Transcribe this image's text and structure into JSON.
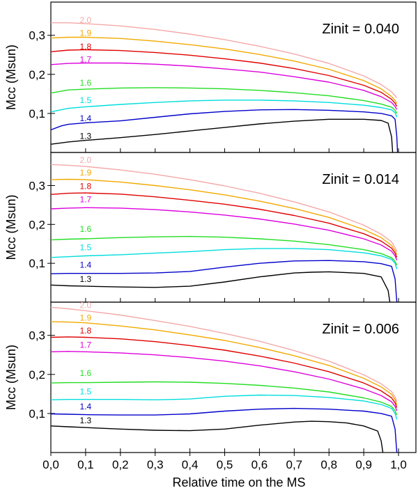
{
  "chart_data": [
    {
      "type": "line",
      "title": "Zinit = 0.040",
      "xlabel": "Relative time on the MS",
      "ylabel": "Mcc (Msun)",
      "xlim": [
        0.0,
        1.05
      ],
      "ylim": [
        0.0,
        0.385
      ],
      "xticks": [
        "0,0",
        "0,1",
        "0,2",
        "0,3",
        "0,4",
        "0,5",
        "0,6",
        "0,7",
        "0,8",
        "0,9",
        "1,0"
      ],
      "yticks": [
        "0,1",
        "0,2",
        "0,3"
      ],
      "series": [
        {
          "name": "2.0",
          "color": "#f4a8a8",
          "label_y": 0.339,
          "x": [
            0,
            0.05,
            0.1,
            0.2,
            0.3,
            0.4,
            0.5,
            0.6,
            0.7,
            0.8,
            0.9,
            0.95,
            0.98,
            0.99,
            0.995
          ],
          "values": [
            0.332,
            0.332,
            0.33,
            0.324,
            0.315,
            0.303,
            0.289,
            0.272,
            0.252,
            0.228,
            0.196,
            0.174,
            0.155,
            0.145,
            0.14
          ]
        },
        {
          "name": "1.9",
          "color": "#f2a900",
          "label_y": 0.306,
          "x": [
            0,
            0.05,
            0.1,
            0.2,
            0.3,
            0.4,
            0.5,
            0.6,
            0.7,
            0.8,
            0.9,
            0.95,
            0.98,
            0.99,
            0.995
          ],
          "values": [
            0.293,
            0.295,
            0.295,
            0.292,
            0.285,
            0.276,
            0.265,
            0.251,
            0.234,
            0.213,
            0.184,
            0.163,
            0.143,
            0.133,
            0.125
          ]
        },
        {
          "name": "1.8",
          "color": "#e00000",
          "label_y": 0.271,
          "x": [
            0,
            0.05,
            0.1,
            0.2,
            0.3,
            0.4,
            0.5,
            0.6,
            0.7,
            0.8,
            0.9,
            0.95,
            0.98,
            0.99,
            0.995
          ],
          "values": [
            0.258,
            0.262,
            0.263,
            0.261,
            0.256,
            0.249,
            0.24,
            0.229,
            0.215,
            0.197,
            0.172,
            0.154,
            0.136,
            0.126,
            0.118
          ]
        },
        {
          "name": "1.7",
          "color": "#dd00dd",
          "label_y": 0.238,
          "x": [
            0,
            0.05,
            0.1,
            0.2,
            0.3,
            0.4,
            0.5,
            0.6,
            0.7,
            0.8,
            0.9,
            0.95,
            0.98,
            0.99,
            0.995
          ],
          "values": [
            0.225,
            0.228,
            0.229,
            0.229,
            0.226,
            0.221,
            0.214,
            0.206,
            0.194,
            0.18,
            0.159,
            0.143,
            0.128,
            0.118,
            0.11
          ]
        },
        {
          "name": "1.6",
          "color": "#22dd22",
          "label_y": 0.178,
          "x": [
            0,
            0.05,
            0.1,
            0.2,
            0.3,
            0.4,
            0.5,
            0.6,
            0.7,
            0.8,
            0.9,
            0.95,
            0.98,
            0.99,
            0.995
          ],
          "values": [
            0.152,
            0.16,
            0.162,
            0.165,
            0.166,
            0.165,
            0.163,
            0.159,
            0.153,
            0.145,
            0.133,
            0.124,
            0.116,
            0.108,
            0.1
          ]
        },
        {
          "name": "1.5",
          "color": "#00dddd",
          "label_y": 0.134,
          "x": [
            0,
            0.05,
            0.1,
            0.2,
            0.3,
            0.4,
            0.5,
            0.6,
            0.7,
            0.8,
            0.9,
            0.95,
            0.98,
            0.99,
            0.995
          ],
          "values": [
            0.104,
            0.113,
            0.117,
            0.123,
            0.128,
            0.132,
            0.134,
            0.134,
            0.132,
            0.128,
            0.121,
            0.115,
            0.109,
            0.102,
            0.09
          ]
        },
        {
          "name": "1.4",
          "color": "#0000cc",
          "label_y": 0.087,
          "x": [
            0,
            0.03,
            0.05,
            0.1,
            0.2,
            0.3,
            0.4,
            0.5,
            0.6,
            0.7,
            0.8,
            0.9,
            0.95,
            0.98,
            0.99,
            0.995,
            0.997
          ],
          "values": [
            0.058,
            0.068,
            0.072,
            0.076,
            0.081,
            0.09,
            0.099,
            0.105,
            0.109,
            0.11,
            0.108,
            0.104,
            0.1,
            0.094,
            0.085,
            0.04,
            0.0
          ]
        },
        {
          "name": "1.3",
          "color": "#000000",
          "label_y": 0.042,
          "x": [
            0,
            0.05,
            0.1,
            0.2,
            0.3,
            0.4,
            0.5,
            0.6,
            0.7,
            0.8,
            0.9,
            0.95,
            0.97,
            0.98,
            0.983
          ],
          "values": [
            0.021,
            0.027,
            0.031,
            0.038,
            0.046,
            0.055,
            0.064,
            0.073,
            0.08,
            0.085,
            0.085,
            0.082,
            0.075,
            0.04,
            0.0
          ]
        }
      ]
    },
    {
      "type": "line",
      "title": "Zinit = 0.014",
      "xlabel": "Relative time on the MS",
      "ylabel": "Mcc (Msun)",
      "xlim": [
        0.0,
        1.05
      ],
      "ylim": [
        0.0,
        0.385
      ],
      "xticks": [
        "0,0",
        "0,1",
        "0,2",
        "0,3",
        "0,4",
        "0,5",
        "0,6",
        "0,7",
        "0,8",
        "0,9",
        "1,0"
      ],
      "yticks": [
        "0,1",
        "0,2",
        "0,3"
      ],
      "series": [
        {
          "name": "2.0",
          "color": "#f4a8a8",
          "label_y": 0.365,
          "x": [
            0,
            0.05,
            0.1,
            0.2,
            0.3,
            0.4,
            0.5,
            0.6,
            0.7,
            0.8,
            0.9,
            0.95,
            0.98,
            0.99,
            0.995
          ],
          "values": [
            0.354,
            0.352,
            0.349,
            0.34,
            0.329,
            0.315,
            0.299,
            0.28,
            0.258,
            0.232,
            0.198,
            0.175,
            0.155,
            0.14,
            0.13
          ]
        },
        {
          "name": "1.9",
          "color": "#f2a900",
          "label_y": 0.333,
          "x": [
            0,
            0.05,
            0.1,
            0.2,
            0.3,
            0.4,
            0.5,
            0.6,
            0.7,
            0.8,
            0.9,
            0.95,
            0.98,
            0.99,
            0.995
          ],
          "values": [
            0.315,
            0.316,
            0.315,
            0.309,
            0.3,
            0.289,
            0.276,
            0.26,
            0.241,
            0.218,
            0.187,
            0.166,
            0.146,
            0.132,
            0.122
          ]
        },
        {
          "name": "1.8",
          "color": "#e00000",
          "label_y": 0.298,
          "x": [
            0,
            0.05,
            0.1,
            0.2,
            0.3,
            0.4,
            0.5,
            0.6,
            0.7,
            0.8,
            0.9,
            0.95,
            0.98,
            0.99,
            0.995
          ],
          "values": [
            0.277,
            0.28,
            0.281,
            0.278,
            0.271,
            0.262,
            0.252,
            0.239,
            0.223,
            0.203,
            0.176,
            0.157,
            0.139,
            0.126,
            0.115
          ]
        },
        {
          "name": "1.7",
          "color": "#dd00dd",
          "label_y": 0.264,
          "x": [
            0,
            0.05,
            0.1,
            0.2,
            0.3,
            0.4,
            0.5,
            0.6,
            0.7,
            0.8,
            0.9,
            0.95,
            0.98,
            0.99,
            0.995
          ],
          "values": [
            0.24,
            0.242,
            0.243,
            0.242,
            0.238,
            0.232,
            0.224,
            0.214,
            0.201,
            0.185,
            0.163,
            0.147,
            0.131,
            0.119,
            0.108
          ]
        },
        {
          "name": "1.6",
          "color": "#22dd22",
          "label_y": 0.188,
          "x": [
            0,
            0.05,
            0.1,
            0.2,
            0.3,
            0.4,
            0.5,
            0.6,
            0.7,
            0.8,
            0.9,
            0.95,
            0.98,
            0.99,
            0.995
          ],
          "values": [
            0.16,
            0.162,
            0.163,
            0.166,
            0.168,
            0.169,
            0.167,
            0.163,
            0.157,
            0.148,
            0.135,
            0.125,
            0.114,
            0.105,
            0.095
          ]
        },
        {
          "name": "1.5",
          "color": "#00dddd",
          "label_y": 0.141,
          "x": [
            0,
            0.05,
            0.1,
            0.2,
            0.3,
            0.4,
            0.5,
            0.6,
            0.7,
            0.8,
            0.9,
            0.95,
            0.98,
            0.99,
            0.995
          ],
          "values": [
            0.115,
            0.117,
            0.119,
            0.122,
            0.126,
            0.13,
            0.135,
            0.138,
            0.138,
            0.135,
            0.127,
            0.119,
            0.11,
            0.1,
            0.085
          ]
        },
        {
          "name": "1.4",
          "color": "#0000cc",
          "label_y": 0.096,
          "x": [
            0,
            0.05,
            0.1,
            0.2,
            0.3,
            0.4,
            0.5,
            0.6,
            0.7,
            0.8,
            0.9,
            0.95,
            0.98,
            0.99,
            0.995
          ],
          "values": [
            0.073,
            0.074,
            0.074,
            0.074,
            0.075,
            0.079,
            0.09,
            0.1,
            0.106,
            0.107,
            0.104,
            0.099,
            0.092,
            0.06,
            0.0
          ]
        },
        {
          "name": "1.3",
          "color": "#000000",
          "label_y": 0.059,
          "x": [
            0,
            0.05,
            0.1,
            0.2,
            0.3,
            0.4,
            0.5,
            0.6,
            0.7,
            0.75,
            0.8,
            0.9,
            0.95,
            0.97,
            0.975
          ],
          "values": [
            0.044,
            0.042,
            0.041,
            0.039,
            0.038,
            0.041,
            0.052,
            0.065,
            0.075,
            0.077,
            0.078,
            0.074,
            0.065,
            0.03,
            0.0
          ]
        }
      ]
    },
    {
      "type": "line",
      "title": "Zinit = 0.006",
      "xlabel": "Relative time on the MS",
      "ylabel": "Mcc (Msun)",
      "xlim": [
        0.0,
        1.05
      ],
      "ylim": [
        0.0,
        0.385
      ],
      "xticks": [
        "0,0",
        "0,1",
        "0,2",
        "0,3",
        "0,4",
        "0,5",
        "0,6",
        "0,7",
        "0,8",
        "0,9",
        "1,0"
      ],
      "yticks": [
        "0,1",
        "0,2",
        "0,3"
      ],
      "series": [
        {
          "name": "2.0",
          "color": "#f4a8a8",
          "label_y": 0.377,
          "x": [
            0,
            0.05,
            0.1,
            0.2,
            0.3,
            0.4,
            0.5,
            0.6,
            0.7,
            0.8,
            0.9,
            0.95,
            0.98,
            0.99,
            0.995
          ],
          "values": [
            0.372,
            0.368,
            0.363,
            0.352,
            0.338,
            0.323,
            0.305,
            0.285,
            0.261,
            0.234,
            0.199,
            0.176,
            0.156,
            0.142,
            0.13
          ]
        },
        {
          "name": "1.9",
          "color": "#f2a900",
          "label_y": 0.345,
          "x": [
            0,
            0.05,
            0.1,
            0.2,
            0.3,
            0.4,
            0.5,
            0.6,
            0.7,
            0.8,
            0.9,
            0.95,
            0.98,
            0.99,
            0.995
          ],
          "values": [
            0.335,
            0.334,
            0.332,
            0.324,
            0.314,
            0.301,
            0.287,
            0.269,
            0.248,
            0.223,
            0.19,
            0.168,
            0.149,
            0.135,
            0.122
          ]
        },
        {
          "name": "1.8",
          "color": "#e00000",
          "label_y": 0.312,
          "x": [
            0,
            0.05,
            0.1,
            0.2,
            0.3,
            0.4,
            0.5,
            0.6,
            0.7,
            0.8,
            0.9,
            0.95,
            0.98,
            0.99,
            0.995
          ],
          "values": [
            0.295,
            0.296,
            0.295,
            0.291,
            0.284,
            0.274,
            0.262,
            0.247,
            0.229,
            0.207,
            0.178,
            0.158,
            0.14,
            0.127,
            0.115
          ]
        },
        {
          "name": "1.7",
          "color": "#dd00dd",
          "label_y": 0.275,
          "x": [
            0,
            0.05,
            0.1,
            0.2,
            0.3,
            0.4,
            0.5,
            0.6,
            0.7,
            0.8,
            0.9,
            0.95,
            0.98,
            0.99,
            0.995
          ],
          "values": [
            0.258,
            0.259,
            0.258,
            0.255,
            0.25,
            0.243,
            0.234,
            0.222,
            0.207,
            0.188,
            0.163,
            0.146,
            0.13,
            0.118,
            0.107
          ]
        },
        {
          "name": "1.6",
          "color": "#22dd22",
          "label_y": 0.203,
          "x": [
            0,
            0.05,
            0.1,
            0.2,
            0.3,
            0.4,
            0.5,
            0.6,
            0.7,
            0.8,
            0.9,
            0.95,
            0.98,
            0.99,
            0.995
          ],
          "values": [
            0.178,
            0.179,
            0.179,
            0.18,
            0.181,
            0.18,
            0.177,
            0.172,
            0.165,
            0.155,
            0.14,
            0.129,
            0.118,
            0.107,
            0.096
          ]
        },
        {
          "name": "1.5",
          "color": "#00dddd",
          "label_y": 0.156,
          "x": [
            0,
            0.05,
            0.1,
            0.2,
            0.3,
            0.4,
            0.5,
            0.6,
            0.7,
            0.8,
            0.9,
            0.95,
            0.98,
            0.99,
            0.995
          ],
          "values": [
            0.135,
            0.136,
            0.136,
            0.136,
            0.135,
            0.137,
            0.144,
            0.147,
            0.146,
            0.141,
            0.132,
            0.123,
            0.113,
            0.1,
            0.085
          ]
        },
        {
          "name": "1.4",
          "color": "#0000cc",
          "label_y": 0.118,
          "x": [
            0,
            0.05,
            0.1,
            0.2,
            0.3,
            0.4,
            0.5,
            0.6,
            0.7,
            0.8,
            0.9,
            0.95,
            0.98,
            0.99,
            0.995
          ],
          "values": [
            0.099,
            0.098,
            0.097,
            0.096,
            0.096,
            0.099,
            0.106,
            0.111,
            0.113,
            0.111,
            0.106,
            0.1,
            0.093,
            0.06,
            0.0
          ]
        },
        {
          "name": "1.3",
          "color": "#000000",
          "label_y": 0.082,
          "x": [
            0,
            0.05,
            0.1,
            0.2,
            0.3,
            0.4,
            0.5,
            0.6,
            0.7,
            0.75,
            0.8,
            0.85,
            0.9,
            0.94,
            0.95,
            0.955
          ],
          "values": [
            0.068,
            0.066,
            0.064,
            0.06,
            0.057,
            0.056,
            0.06,
            0.07,
            0.078,
            0.08,
            0.079,
            0.076,
            0.068,
            0.055,
            0.03,
            0.0
          ]
        }
      ]
    }
  ]
}
